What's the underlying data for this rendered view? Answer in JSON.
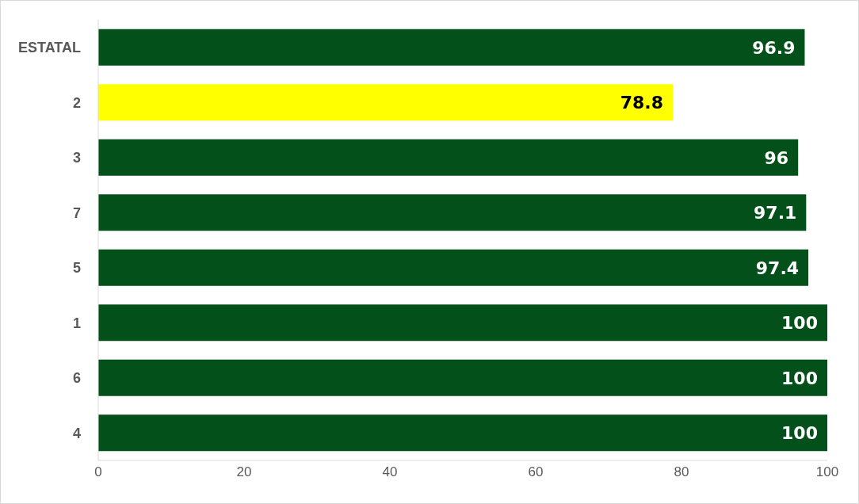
{
  "chart_data": {
    "type": "bar",
    "orientation": "horizontal",
    "categories": [
      "ESTATAL",
      "2",
      "3",
      "7",
      "5",
      "1",
      "6",
      "4"
    ],
    "values": [
      96.9,
      78.8,
      96,
      97.1,
      97.4,
      100,
      100,
      100
    ],
    "colors": [
      "#03501a",
      "#ffff00",
      "#03501a",
      "#03501a",
      "#03501a",
      "#03501a",
      "#03501a",
      "#03501a"
    ],
    "xlim": [
      0,
      100
    ],
    "xticks": [
      0,
      20,
      40,
      60,
      80,
      100
    ],
    "grid": false,
    "data_labels": true
  }
}
